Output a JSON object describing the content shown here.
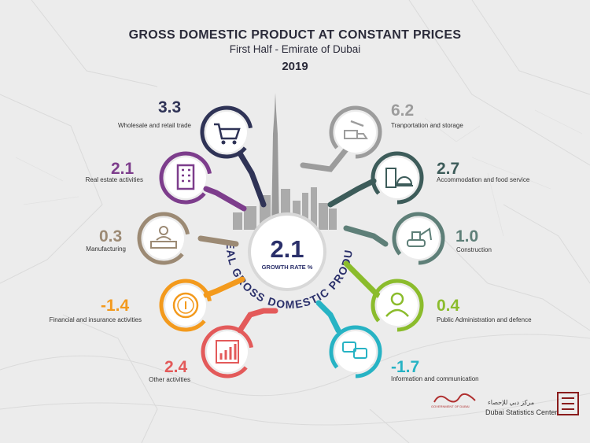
{
  "title": "GROSS DOMESTIC PRODUCT AT CONSTANT PRICES",
  "subtitle": "First Half - Emirate of Dubai",
  "year": "2019",
  "center": {
    "value": "2.1",
    "label": "GROWTH RATE %",
    "arc_text": "REAL GROSS DOMESTIC PRODUCT"
  },
  "colors": {
    "title": "#2b2b3a",
    "center": "#2a2f6a"
  },
  "sectors": [
    {
      "id": "wholesale",
      "value": "3.3",
      "label": "Wholesale and retail trade",
      "color": "#2f3356",
      "icon": "shopping-cart-icon"
    },
    {
      "id": "real-estate",
      "value": "2.1",
      "label": "Real estate activities",
      "color": "#7d3d8c",
      "icon": "building-icon"
    },
    {
      "id": "manufacturing",
      "value": "0.3",
      "label": "Manufacturing",
      "color": "#9c8a74",
      "icon": "factory-worker-icon"
    },
    {
      "id": "financial",
      "value": "-1.4",
      "label": "Financial and insurance activities",
      "color": "#f39a1d",
      "icon": "coin-icon"
    },
    {
      "id": "other",
      "value": "2.4",
      "label": "Other activities",
      "color": "#e35a5a",
      "icon": "bar-chart-icon"
    },
    {
      "id": "transport",
      "value": "6.2",
      "label": "Tranportation and storage",
      "color": "#9c9c9c",
      "icon": "transport-icon"
    },
    {
      "id": "accommodation",
      "value": "2.7",
      "label": "Accommodation and food service",
      "color": "#3d5c5a",
      "icon": "hotel-icon"
    },
    {
      "id": "construction",
      "value": "1.0",
      "label": "Construction",
      "color": "#5e7f78",
      "icon": "excavator-icon"
    },
    {
      "id": "public-admin",
      "value": "0.4",
      "label": "Public Administration and defence",
      "color": "#8bbc2c",
      "icon": "person-icon"
    },
    {
      "id": "info-comm",
      "value": "-1.7",
      "label": "Information and communication",
      "color": "#27b3c4",
      "icon": "chat-icon"
    }
  ],
  "logos": {
    "left_text": "GOVERNMENT OF DUBAI",
    "right_ar": "مركز دبي للإحصاء",
    "right_en": "Dubai Statistics Center"
  }
}
